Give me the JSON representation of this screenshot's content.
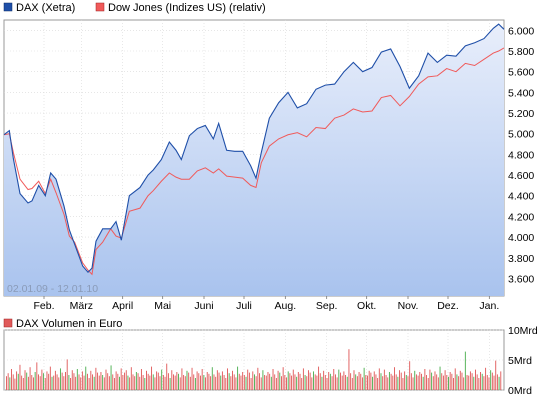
{
  "chart_data": [
    {
      "type": "line",
      "legend_placement": "top-left",
      "grid": true,
      "date_range_label": "02.01.09 - 12.01.10",
      "x_tick_labels": [
        "Feb.",
        "März",
        "April",
        "Mai",
        "Juni",
        "Juli",
        "Aug.",
        "Sep.",
        "Okt.",
        "Nov.",
        "Dez.",
        "Jan."
      ],
      "x_tick_dates": [
        "2009-02-01",
        "2009-03-01",
        "2009-04-01",
        "2009-05-01",
        "2009-06-01",
        "2009-07-01",
        "2009-08-01",
        "2009-09-01",
        "2009-10-01",
        "2009-11-01",
        "2009-12-01",
        "2010-01-01"
      ],
      "x_range": [
        "2009-01-02",
        "2010-01-12"
      ],
      "y_tick_labels": [
        "3.600",
        "3.800",
        "4.000",
        "4.200",
        "4.400",
        "4.600",
        "4.800",
        "5.000",
        "5.200",
        "5.400",
        "5.600",
        "5.800",
        "6.000"
      ],
      "y_ticks": [
        3600,
        3800,
        4000,
        4200,
        4400,
        4600,
        4800,
        5000,
        5200,
        5400,
        5600,
        5800,
        6000
      ],
      "ylim": [
        3430,
        6100
      ],
      "series": [
        {
          "name": "DAX (Xetra)",
          "color": "#1f4fa8",
          "area_fill": true,
          "x": [
            "2009-01-02",
            "2009-01-06",
            "2009-01-09",
            "2009-01-14",
            "2009-01-20",
            "2009-01-23",
            "2009-01-28",
            "2009-02-02",
            "2009-02-06",
            "2009-02-10",
            "2009-02-16",
            "2009-02-20",
            "2009-02-24",
            "2009-03-02",
            "2009-03-06",
            "2009-03-09",
            "2009-03-12",
            "2009-03-17",
            "2009-03-23",
            "2009-03-27",
            "2009-03-31",
            "2009-04-06",
            "2009-04-14",
            "2009-04-20",
            "2009-04-24",
            "2009-04-30",
            "2009-05-06",
            "2009-05-11",
            "2009-05-15",
            "2009-05-21",
            "2009-05-27",
            "2009-06-02",
            "2009-06-08",
            "2009-06-12",
            "2009-06-18",
            "2009-06-24",
            "2009-06-30",
            "2009-07-06",
            "2009-07-10",
            "2009-07-14",
            "2009-07-20",
            "2009-07-27",
            "2009-08-03",
            "2009-08-10",
            "2009-08-17",
            "2009-08-24",
            "2009-08-31",
            "2009-09-07",
            "2009-09-14",
            "2009-09-21",
            "2009-09-28",
            "2009-10-05",
            "2009-10-12",
            "2009-10-19",
            "2009-10-26",
            "2009-11-02",
            "2009-11-09",
            "2009-11-16",
            "2009-11-23",
            "2009-11-30",
            "2009-12-07",
            "2009-12-14",
            "2009-12-21",
            "2009-12-28",
            "2010-01-04",
            "2010-01-08",
            "2010-01-12"
          ],
          "values": [
            4990,
            5030,
            4760,
            4420,
            4330,
            4350,
            4500,
            4400,
            4620,
            4560,
            4300,
            4070,
            3930,
            3720,
            3660,
            3700,
            3960,
            4080,
            4080,
            4150,
            3970,
            4400,
            4480,
            4600,
            4650,
            4750,
            4920,
            4840,
            4750,
            4980,
            5050,
            5080,
            4950,
            5100,
            4840,
            4830,
            4830,
            4690,
            4570,
            4820,
            5150,
            5300,
            5400,
            5250,
            5290,
            5430,
            5470,
            5480,
            5600,
            5690,
            5600,
            5640,
            5790,
            5820,
            5650,
            5440,
            5560,
            5780,
            5690,
            5760,
            5750,
            5850,
            5880,
            5920,
            6020,
            6060,
            6010
          ]
        },
        {
          "name": "Dow Jones (Indizes US) (relativ)",
          "color": "#f05a5a",
          "area_fill": false,
          "x": [
            "2009-01-02",
            "2009-01-06",
            "2009-01-09",
            "2009-01-14",
            "2009-01-20",
            "2009-01-23",
            "2009-01-28",
            "2009-02-02",
            "2009-02-06",
            "2009-02-10",
            "2009-02-16",
            "2009-02-20",
            "2009-02-24",
            "2009-03-02",
            "2009-03-06",
            "2009-03-09",
            "2009-03-12",
            "2009-03-17",
            "2009-03-23",
            "2009-03-27",
            "2009-03-31",
            "2009-04-06",
            "2009-04-14",
            "2009-04-20",
            "2009-04-24",
            "2009-04-30",
            "2009-05-06",
            "2009-05-11",
            "2009-05-15",
            "2009-05-21",
            "2009-05-27",
            "2009-06-02",
            "2009-06-08",
            "2009-06-12",
            "2009-06-18",
            "2009-06-24",
            "2009-06-30",
            "2009-07-06",
            "2009-07-10",
            "2009-07-14",
            "2009-07-20",
            "2009-07-27",
            "2009-08-03",
            "2009-08-10",
            "2009-08-17",
            "2009-08-24",
            "2009-08-31",
            "2009-09-07",
            "2009-09-14",
            "2009-09-21",
            "2009-09-28",
            "2009-10-05",
            "2009-10-12",
            "2009-10-19",
            "2009-10-26",
            "2009-11-02",
            "2009-11-09",
            "2009-11-16",
            "2009-11-23",
            "2009-11-30",
            "2009-12-07",
            "2009-12-14",
            "2009-12-21",
            "2009-12-28",
            "2010-01-04",
            "2010-01-08",
            "2010-01-12"
          ],
          "values": [
            4990,
            5000,
            4820,
            4560,
            4460,
            4470,
            4540,
            4420,
            4560,
            4430,
            4220,
            4010,
            3950,
            3750,
            3680,
            3640,
            3880,
            3950,
            4080,
            4010,
            3990,
            4250,
            4280,
            4400,
            4450,
            4540,
            4620,
            4580,
            4560,
            4560,
            4640,
            4670,
            4620,
            4660,
            4590,
            4580,
            4570,
            4500,
            4480,
            4720,
            4880,
            4950,
            4990,
            5010,
            4970,
            5060,
            5050,
            5150,
            5180,
            5240,
            5210,
            5220,
            5350,
            5370,
            5270,
            5360,
            5480,
            5550,
            5560,
            5630,
            5600,
            5680,
            5660,
            5720,
            5780,
            5800,
            5830
          ]
        }
      ]
    },
    {
      "type": "bar",
      "title": "DAX Volumen in Euro",
      "legend_color": "#e05a5a",
      "y_tick_labels": [
        "0Mrd",
        "5Mrd",
        "10Mrd"
      ],
      "y_ticks": [
        0,
        5,
        10
      ],
      "ylim": [
        0,
        10
      ],
      "unit": "Mrd",
      "x_range": [
        "2009-01-02",
        "2010-01-12"
      ],
      "highlight_every_nth": 5,
      "colors": {
        "normal": "#e05a5a",
        "highlight": "#4caf50"
      },
      "values": [
        2.3,
        2.8,
        2.1,
        3.5,
        2.6,
        1.9,
        3.1,
        2.7,
        4.2,
        2.4,
        2.0,
        3.3,
        2.9,
        2.2,
        3.8,
        2.5,
        2.1,
        3.0,
        4.6,
        2.6,
        2.3,
        3.4,
        2.8,
        2.0,
        3.1,
        2.7,
        3.9,
        2.2,
        2.4,
        3.2,
        2.6,
        2.1,
        3.6,
        2.9,
        2.3,
        3.0,
        5.1,
        2.5,
        2.0,
        3.3,
        2.8,
        2.2,
        3.5,
        2.6,
        2.1,
        3.1,
        2.4,
        3.9,
        2.7,
        2.0,
        3.2,
        2.6,
        2.2,
        3.7,
        2.9,
        2.4,
        3.0,
        2.5,
        2.1,
        3.4,
        2.8,
        2.3,
        4.1,
        2.6,
        2.0,
        3.1,
        2.7,
        2.2,
        3.6,
        2.5,
        2.9,
        3.3,
        2.4,
        2.1,
        3.8,
        2.6,
        2.3,
        3.0,
        2.8,
        2.2,
        3.5,
        2.5,
        2.0,
        3.2,
        2.7,
        2.4,
        3.9,
        2.6,
        2.1,
        3.1,
        2.9,
        2.3,
        3.4,
        2.5,
        2.2,
        4.4,
        2.8,
        2.0,
        3.3,
        2.6,
        2.4,
        3.0,
        2.7,
        2.1,
        3.6,
        2.5,
        2.3,
        3.2,
        2.9,
        2.2,
        3.7,
        2.6,
        2.0,
        3.1,
        2.8,
        2.4,
        3.5,
        2.5,
        2.1,
        3.0,
        2.7,
        2.3,
        3.8,
        2.6,
        2.2,
        3.3,
        2.9,
        2.4,
        3.1,
        2.5,
        2.0,
        3.6,
        2.8,
        2.3,
        3.2,
        2.6,
        2.1,
        3.9,
        2.7,
        2.4,
        3.0,
        2.5,
        2.2,
        3.4,
        2.9,
        2.0,
        3.1,
        2.6,
        2.3,
        3.7,
        2.8,
        2.1,
        3.3,
        2.5,
        2.4,
        3.0,
        2.7,
        2.2,
        3.5,
        2.6,
        2.0,
        3.2,
        2.9,
        2.3,
        3.8,
        2.5,
        2.1,
        3.1,
        2.8,
        2.4,
        3.4,
        2.6,
        2.2,
        3.0,
        2.7,
        2.0,
        3.6,
        2.5,
        2.3,
        3.3,
        2.9,
        2.1,
        3.1,
        2.6,
        2.4,
        3.9,
        2.8,
        2.2,
        3.2,
        2.5,
        2.0,
        3.0,
        2.7,
        2.3,
        3.5,
        2.6,
        2.1,
        3.4,
        2.9,
        2.4,
        3.1,
        2.5,
        2.2,
        6.8,
        2.8,
        2.0,
        3.3,
        2.6,
        2.3,
        3.0,
        2.7,
        2.1,
        3.7,
        2.5,
        2.4,
        3.2,
        2.9,
        2.2,
        3.1,
        2.6,
        2.0,
        3.6,
        2.8,
        2.3,
        3.4,
        2.5,
        2.1,
        3.0,
        2.7,
        2.4,
        3.8,
        2.6,
        2.2,
        3.3,
        2.9,
        2.0,
        3.1,
        2.5,
        2.3,
        4.8,
        2.8,
        2.1,
        3.2,
        2.6,
        2.4,
        3.0,
        2.7,
        2.2,
        3.5,
        2.5,
        2.0,
        3.4,
        2.9,
        2.3,
        3.1,
        2.6,
        2.1,
        3.9,
        2.8,
        2.4,
        3.3,
        2.5,
        2.2,
        3.0,
        2.7,
        2.0,
        3.6,
        2.6,
        2.3,
        3.2,
        2.9,
        2.1,
        6.4,
        2.5,
        2.4,
        3.1,
        2.8,
        2.2,
        3.4,
        2.6,
        2.0,
        3.0,
        2.7,
        2.3,
        3.7,
        2.5,
        2.1,
        3.3,
        2.9,
        2.4,
        4.9,
        2.6,
        2.2,
        3.1
      ]
    }
  ]
}
